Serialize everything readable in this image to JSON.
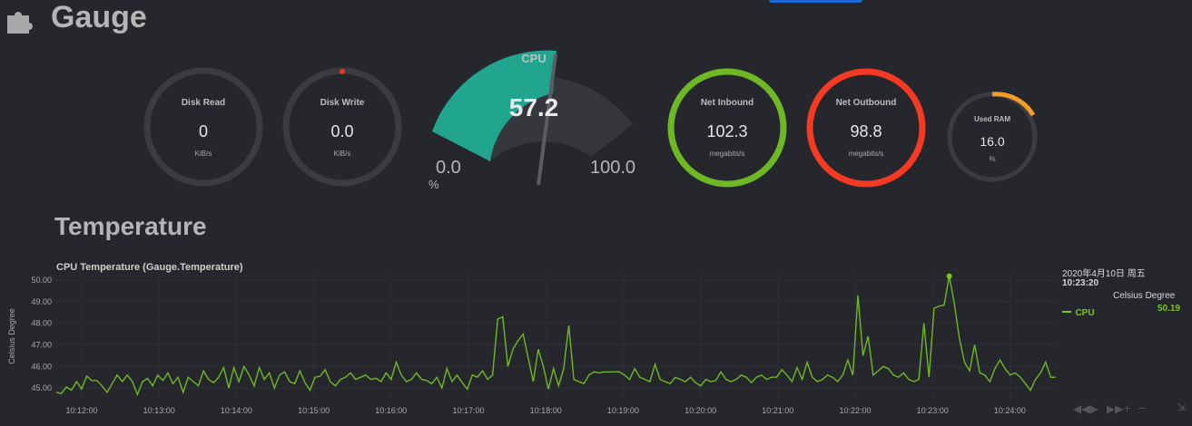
{
  "header": {
    "title": "Gauge",
    "section_title": "Temperature"
  },
  "gauges": {
    "disk_read": {
      "title": "Disk Read",
      "value": "0",
      "unit": "KiB/s",
      "fill": 0.0
    },
    "disk_write": {
      "title": "Disk Write",
      "value": "0.0",
      "unit": "KiB/s",
      "fill": 0.0
    },
    "cpu": {
      "title": "CPU",
      "value": "57.2",
      "min": "0.0",
      "max": "100.0",
      "unit": "%"
    },
    "net_inbound": {
      "title": "Net Inbound",
      "value": "102.3",
      "unit": "megabits/s",
      "fill": 1.0
    },
    "net_outbound": {
      "title": "Net Outbound",
      "value": "98.8",
      "unit": "megabits/s",
      "fill": 1.0
    },
    "used_ram": {
      "title": "Used RAM",
      "value": "16.0",
      "unit": "%",
      "fill": 0.16
    }
  },
  "colors": {
    "background": "#25272c",
    "track": "#3a3c41",
    "teal": "#21a58f",
    "green": "#6eb825",
    "red": "#f53a24",
    "orange": "#f39c29",
    "red_dot": "#e53b25",
    "legend_green": "#78c61b"
  },
  "legend": {
    "date": "2020年4月10日 周五",
    "time": "10:23:20",
    "heading": "Celsius Degree",
    "series_name": "CPU",
    "series_value": "50.19"
  },
  "chart_data": {
    "type": "line",
    "title": "CPU Temperature (Gauge.Temperature)",
    "xlabel": "",
    "ylabel": "Celsius Degree",
    "ylim": [
      44.5,
      50.3
    ],
    "yticks": [
      "45.00",
      "46.00",
      "47.00",
      "48.00",
      "49.00",
      "50.00"
    ],
    "xticks": [
      "10:12:00",
      "10:13:00",
      "10:14:00",
      "10:15:00",
      "10:16:00",
      "10:17:00",
      "10:18:00",
      "10:19:00",
      "10:20:00",
      "10:21:00",
      "10:22:00",
      "10:23:00",
      "10:24:00"
    ],
    "series": [
      {
        "name": "CPU",
        "color": "#6eb825",
        "y": [
          44.8,
          44.75,
          45.05,
          44.9,
          45.3,
          44.95,
          45.55,
          45.35,
          45.35,
          45.1,
          44.8,
          45.2,
          45.6,
          45.3,
          45.6,
          45.3,
          44.7,
          45.3,
          45.45,
          45.1,
          45.6,
          45.35,
          45.7,
          45.2,
          45.5,
          44.8,
          45.5,
          45.3,
          45.1,
          45.8,
          45.4,
          45.25,
          45.5,
          45.95,
          45.0,
          45.95,
          45.3,
          46.0,
          45.6,
          45.1,
          45.95,
          45.4,
          45.7,
          45.0,
          45.6,
          45.75,
          45.3,
          45.2,
          45.8,
          45.25,
          44.9,
          45.5,
          45.55,
          45.85,
          45.3,
          45.1,
          45.4,
          45.5,
          45.7,
          45.4,
          45.5,
          45.6,
          45.4,
          45.45,
          45.3,
          45.7,
          45.4,
          46.2,
          45.6,
          45.3,
          45.4,
          45.7,
          45.4,
          45.35,
          45.2,
          45.5,
          45.0,
          45.9,
          45.3,
          45.6,
          45.25,
          44.95,
          45.6,
          45.5,
          45.8,
          45.4,
          45.6,
          48.2,
          48.3,
          46.0,
          46.8,
          47.2,
          47.5,
          46.4,
          45.3,
          46.8,
          46.0,
          44.95,
          45.9,
          45.1,
          45.9,
          47.9,
          45.4,
          45.3,
          45.2,
          45.6,
          45.75,
          45.7,
          45.75,
          45.75,
          45.75,
          45.75,
          45.6,
          45.4,
          45.9,
          45.5,
          45.4,
          45.3,
          46.1,
          45.4,
          45.3,
          45.2,
          45.5,
          45.4,
          45.3,
          45.5,
          45.25,
          45.1,
          45.4,
          45.3,
          45.35,
          45.75,
          45.4,
          45.3,
          45.4,
          45.6,
          45.5,
          45.25,
          45.5,
          45.6,
          45.4,
          45.5,
          45.5,
          45.85,
          45.6,
          45.3,
          45.95,
          45.4,
          46.2,
          45.5,
          45.3,
          45.4,
          45.6,
          45.5,
          45.3,
          45.6,
          46.3,
          45.6,
          49.3,
          46.5,
          47.4,
          45.6,
          45.8,
          46.0,
          45.9,
          45.6,
          45.5,
          45.7,
          45.4,
          45.3,
          45.4,
          48.0,
          45.5,
          48.7,
          48.8,
          48.85,
          50.19,
          48.9,
          47.3,
          46.2,
          45.8,
          47.0,
          45.7,
          45.6,
          45.3,
          45.9,
          46.3,
          45.9,
          45.6,
          45.7,
          45.5,
          45.2,
          44.9,
          45.4,
          45.7,
          46.2,
          45.5,
          45.5
        ]
      }
    ]
  }
}
